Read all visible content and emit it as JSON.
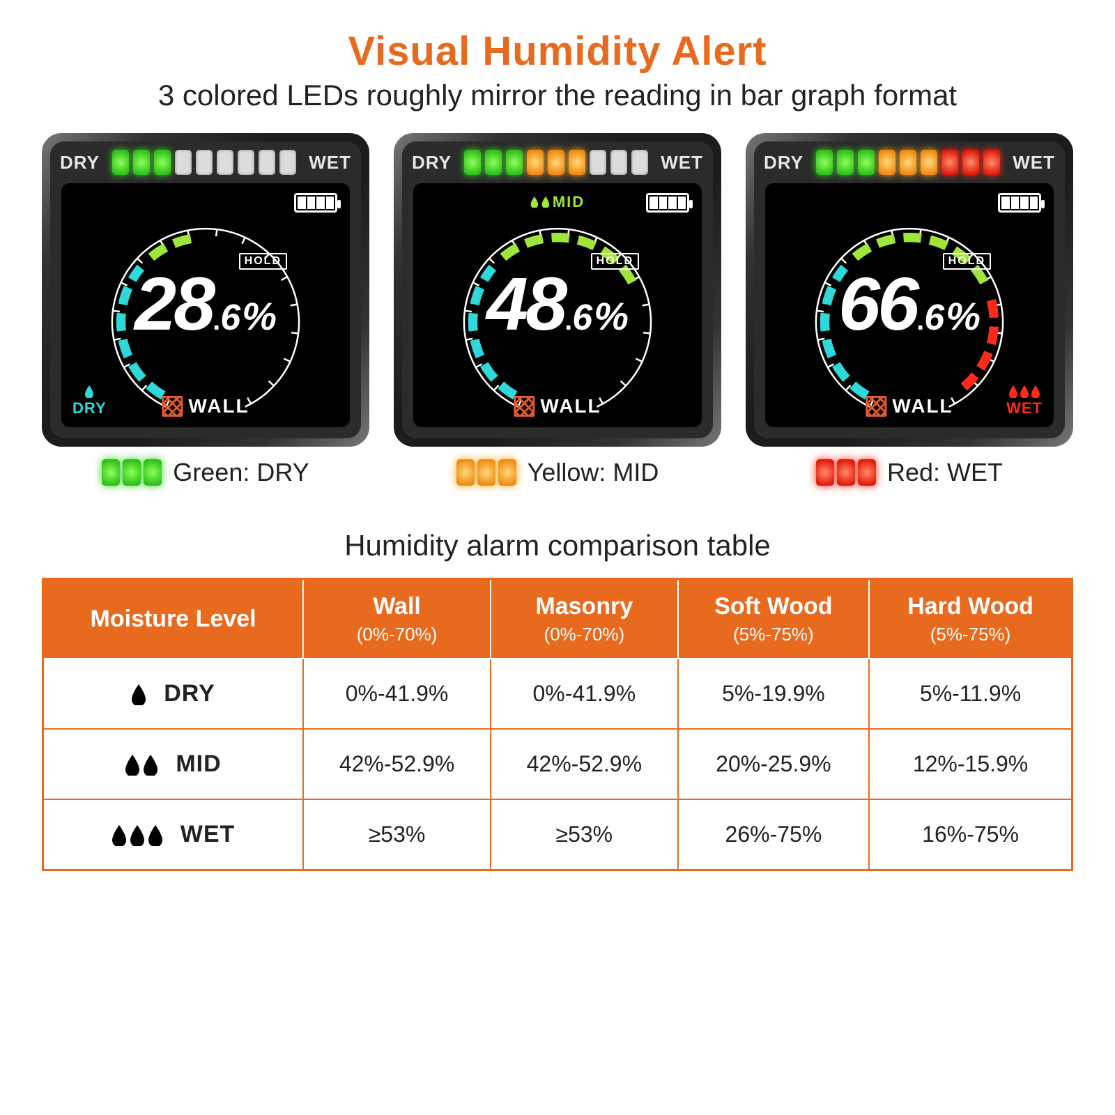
{
  "colors": {
    "orange": "#e86a1e",
    "green": "#3fd12e",
    "yellow": "#f5a623",
    "red": "#ff2a1a",
    "cyan": "#2fd9d9",
    "lime": "#9fe63b",
    "black": "#000000",
    "white": "#ffffff",
    "text": "#262626"
  },
  "header": {
    "title": "Visual Humidity Alert",
    "subtitle": "3 colored LEDs roughly mirror the reading in bar graph format",
    "title_fontsize": 58,
    "subtitle_fontsize": 42,
    "title_color": "#e86a1e"
  },
  "led_bar": {
    "count": 9,
    "labels": {
      "left": "DRY",
      "right": "WET"
    },
    "off_color": "#dcdcdc",
    "on_colors": {
      "green": "#3fd12e",
      "yellow": "#f5a623",
      "red": "#ff2a1a"
    }
  },
  "devices": [
    {
      "id": "dry",
      "reading_int": "28",
      "reading_dec": "6",
      "unit": "%",
      "hold": "HOLD",
      "leds": [
        "green",
        "green",
        "green",
        "off",
        "off",
        "off",
        "off",
        "off",
        "off"
      ],
      "mid_tag": null,
      "corner": {
        "side": "left",
        "label": "DRY",
        "color": "#2fd9d9",
        "drops": 1
      },
      "mode_label": "WALL",
      "battery_cells": 4,
      "gauge": {
        "cyan_start": 210,
        "cyan_end": 310,
        "lime_start": 320,
        "lime_end": 350,
        "red_start": null,
        "red_end": null
      },
      "caption_color": "green",
      "caption_label": "Green: DRY"
    },
    {
      "id": "mid",
      "reading_int": "48",
      "reading_dec": "6",
      "unit": "%",
      "hold": "HOLD",
      "leds": [
        "green",
        "green",
        "green",
        "yellow",
        "yellow",
        "yellow",
        "off",
        "off",
        "off"
      ],
      "mid_tag": "MID",
      "corner": null,
      "mode_label": "WALL",
      "battery_cells": 4,
      "gauge": {
        "cyan_start": 210,
        "cyan_end": 310,
        "lime_start": 320,
        "lime_end": 65,
        "red_start": null,
        "red_end": null
      },
      "caption_color": "yellow",
      "caption_label": "Yellow: MID"
    },
    {
      "id": "wet",
      "reading_int": "66",
      "reading_dec": "6",
      "unit": "%",
      "hold": "HOLD",
      "leds": [
        "green",
        "green",
        "green",
        "yellow",
        "yellow",
        "yellow",
        "red",
        "red",
        "red"
      ],
      "mid_tag": null,
      "corner": {
        "side": "right",
        "label": "WET",
        "color": "#ff2a1a",
        "drops": 3
      },
      "mode_label": "WALL",
      "battery_cells": 4,
      "gauge": {
        "cyan_start": 210,
        "cyan_end": 310,
        "lime_start": 320,
        "lime_end": 65,
        "red_start": 75,
        "red_end": 140
      },
      "caption_color": "red",
      "caption_label": "Red: WET"
    }
  ],
  "table": {
    "title": "Humidity alarm comparison table",
    "title_fontsize": 42,
    "header_bg": "#e86a1e",
    "header_fg": "#ffffff",
    "border_color": "#e86a1e",
    "columns": [
      {
        "label": "Moisture Level",
        "range": ""
      },
      {
        "label": "Wall",
        "range": "(0%-70%)"
      },
      {
        "label": "Masonry",
        "range": "(0%-70%)"
      },
      {
        "label": "Soft Wood",
        "range": "(5%-75%)"
      },
      {
        "label": "Hard Wood",
        "range": "(5%-75%)"
      }
    ],
    "rows": [
      {
        "level": "DRY",
        "drops": 1,
        "values": [
          "0%-41.9%",
          "0%-41.9%",
          "5%-19.9%",
          "5%-11.9%"
        ]
      },
      {
        "level": "MID",
        "drops": 2,
        "values": [
          "42%-52.9%",
          "42%-52.9%",
          "20%-25.9%",
          "12%-15.9%"
        ]
      },
      {
        "level": "WET",
        "drops": 3,
        "values": [
          "≥53%",
          "≥53%",
          "26%-75%",
          "16%-75%"
        ]
      }
    ]
  }
}
